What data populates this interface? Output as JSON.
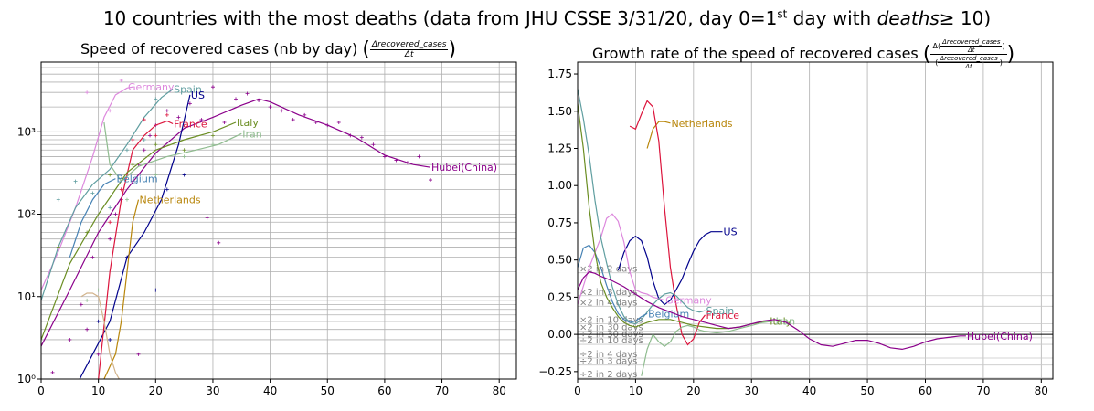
{
  "figure": {
    "title_prefix": "10 countries with the most deaths (data from JHU CSSE 3/31/20, day 0=1",
    "title_sup": "st",
    "title_mid": " day with ",
    "title_em": "deaths",
    "title_suffix": "≥ 10)"
  },
  "left_panel": {
    "title_text": "Speed of recovered cases (nb by day)",
    "frac_num": "Δrecovered_cases",
    "frac_den": "Δt"
  },
  "right_panel": {
    "title_text": "Growth rate of the speed of recovered cases",
    "outer_num_prefix": "Δ",
    "frac_num": "Δrecovered_cases",
    "frac_den": "Δt",
    "frac2_num": "Δrecovered_cases",
    "frac2_den": "Δt"
  },
  "chart_data": [
    {
      "type": "line",
      "scale": "log",
      "xlim": [
        0,
        83
      ],
      "ylim": [
        1,
        7000
      ],
      "xticks": [
        "0",
        "10",
        "20",
        "30",
        "40",
        "50",
        "60",
        "70",
        "80"
      ],
      "yticks": [
        "10⁰",
        "10¹",
        "10²",
        "10³"
      ],
      "grid": true,
      "series": [
        {
          "name": "Hubei(China)",
          "color": "#8b008b",
          "label_at": [
            68,
            370
          ],
          "x": [
            0,
            5,
            10,
            15,
            20,
            25,
            30,
            35,
            38,
            40,
            45,
            50,
            55,
            60,
            65,
            68
          ],
          "y": [
            2.5,
            12,
            60,
            200,
            550,
            1100,
            1500,
            2100,
            2500,
            2300,
            1600,
            1200,
            850,
            520,
            400,
            370
          ],
          "points": [
            [
              2,
              1.2
            ],
            [
              5,
              3
            ],
            [
              7,
              8
            ],
            [
              8,
              4
            ],
            [
              9,
              30
            ],
            [
              10,
              2
            ],
            [
              12,
              50
            ],
            [
              13,
              100
            ],
            [
              14,
              150
            ],
            [
              16,
              250
            ],
            [
              17,
              400
            ],
            [
              18,
              600
            ],
            [
              19,
              900
            ],
            [
              20,
              1200
            ],
            [
              22,
              1800
            ],
            [
              24,
              1500
            ],
            [
              26,
              2200
            ],
            [
              28,
              1400
            ],
            [
              30,
              3500
            ],
            [
              32,
              1300
            ],
            [
              34,
              2500
            ],
            [
              36,
              2900
            ],
            [
              38,
              2400
            ],
            [
              40,
              2000
            ],
            [
              42,
              1800
            ],
            [
              44,
              1400
            ],
            [
              46,
              1600
            ],
            [
              48,
              1300
            ],
            [
              50,
              1200
            ],
            [
              52,
              1300
            ],
            [
              54,
              900
            ],
            [
              56,
              850
            ],
            [
              58,
              700
            ],
            [
              60,
              500
            ],
            [
              62,
              450
            ],
            [
              64,
              420
            ],
            [
              66,
              500
            ],
            [
              68,
              260
            ],
            [
              17,
              2
            ],
            [
              29,
              90
            ],
            [
              31,
              45
            ]
          ]
        },
        {
          "name": "Germany",
          "color": "#dd88dd",
          "label_at": [
            15,
            3500
          ],
          "x": [
            0,
            3,
            6,
            9,
            11,
            13,
            15,
            16
          ],
          "y": [
            12,
            35,
            120,
            500,
            1500,
            2800,
            3400,
            3500
          ],
          "points": [
            [
              8,
              3000
            ],
            [
              12,
              1800
            ],
            [
              14,
              4200
            ]
          ]
        },
        {
          "name": "Spain",
          "color": "#5f9ea0",
          "label_at": [
            23,
            3300
          ],
          "x": [
            0,
            3,
            6,
            9,
            12,
            15,
            18,
            21,
            23
          ],
          "y": [
            9,
            40,
            120,
            230,
            350,
            700,
            1500,
            2600,
            3300
          ],
          "points": [
            [
              3,
              150
            ],
            [
              6,
              250
            ],
            [
              9,
              180
            ],
            [
              12,
              120
            ],
            [
              15,
              600
            ],
            [
              18,
              800
            ],
            [
              20,
              2500
            ]
          ]
        },
        {
          "name": "US",
          "color": "#00008b",
          "label_at": [
            26,
            2800
          ],
          "x": [
            6,
            9,
            12,
            15,
            18,
            21,
            24,
            26
          ],
          "y": [
            0.8,
            2,
            5,
            30,
            60,
            150,
            700,
            2800
          ],
          "points": [
            [
              10,
              5
            ],
            [
              12,
              3
            ],
            [
              15,
              30
            ],
            [
              20,
              12
            ],
            [
              22,
              200
            ],
            [
              25,
              300
            ]
          ]
        },
        {
          "name": "France",
          "color": "#dc143c",
          "label_at": [
            23,
            1250
          ],
          "x": [
            10,
            12,
            14,
            16,
            18,
            20,
            22,
            23
          ],
          "y": [
            1,
            20,
            150,
            600,
            900,
            1200,
            1350,
            1250
          ],
          "points": [
            [
              12,
              80
            ],
            [
              14,
              200
            ],
            [
              16,
              800
            ],
            [
              18,
              1400
            ],
            [
              20,
              900
            ],
            [
              22,
              1600
            ]
          ]
        },
        {
          "name": "Italy",
          "color": "#6b8e23",
          "label_at": [
            34,
            1300
          ],
          "x": [
            0,
            5,
            10,
            15,
            20,
            25,
            30,
            34
          ],
          "y": [
            3,
            25,
            100,
            320,
            600,
            800,
            1000,
            1300
          ],
          "points": [
            [
              3,
              40
            ],
            [
              8,
              60
            ],
            [
              12,
              300
            ],
            [
              16,
              400
            ],
            [
              20,
              700
            ],
            [
              25,
              600
            ],
            [
              30,
              900
            ]
          ]
        },
        {
          "name": "Iran",
          "color": "#8fbc8f",
          "label_at": [
            35,
            950
          ],
          "x": [
            11,
            12,
            14,
            17,
            22,
            27,
            31,
            35
          ],
          "y": [
            1300,
            400,
            250,
            380,
            500,
            600,
            700,
            950
          ],
          "points": [
            [
              8,
              9
            ],
            [
              10,
              12
            ],
            [
              15,
              150
            ],
            [
              20,
              300
            ],
            [
              25,
              500
            ],
            [
              30,
              700
            ]
          ]
        },
        {
          "name": "Belgium",
          "color": "#4682b4",
          "label_at": [
            13,
            270
          ],
          "x": [
            5,
            7,
            9,
            11,
            13
          ],
          "y": [
            30,
            80,
            150,
            230,
            270
          ],
          "points": []
        },
        {
          "name": "Netherlands",
          "color": "#b8860b",
          "label_at": [
            17,
            150
          ],
          "x": [
            11,
            13,
            14,
            15,
            16,
            17
          ],
          "y": [
            1,
            2,
            5,
            20,
            80,
            150
          ],
          "points": []
        },
        {
          "name": "",
          "color": "#d2b48c",
          "label_at": null,
          "x": [
            7,
            8,
            9,
            10,
            11,
            12,
            13,
            14,
            15
          ],
          "y": [
            10,
            11,
            11,
            10,
            5,
            2,
            1.2,
            0.9,
            0.9
          ],
          "points": []
        }
      ]
    },
    {
      "type": "line",
      "xlim": [
        0,
        82
      ],
      "ylim": [
        -0.3,
        1.83
      ],
      "xticks": [
        "0",
        "10",
        "20",
        "30",
        "40",
        "50",
        "60",
        "70",
        "80"
      ],
      "yticks": [
        "−0.25",
        "0.00",
        "0.25",
        "0.50",
        "0.75",
        "1.00",
        "1.25",
        "1.50",
        "1.75"
      ],
      "ytick_values": [
        -0.25,
        0,
        0.25,
        0.5,
        0.75,
        1.0,
        1.25,
        1.5,
        1.75
      ],
      "grid": true,
      "reference_lines": [
        {
          "label": "×2 in 2 days",
          "value": 0.414
        },
        {
          "label": "×2 in 3 days",
          "value": 0.26
        },
        {
          "label": "×2 in 4 days",
          "value": 0.189
        },
        {
          "label": "×2 in 10 days",
          "value": 0.072
        },
        {
          "label": "×2 in 30 days",
          "value": 0.023
        },
        {
          "label": "÷2 in 30 days",
          "value": -0.023
        },
        {
          "label": "÷2 in 10 days",
          "value": -0.067
        },
        {
          "label": "÷2 in 4 days",
          "value": -0.159
        },
        {
          "label": "÷2 in 3 days",
          "value": -0.206
        },
        {
          "label": "÷2 in 2 days",
          "value": -0.293
        }
      ],
      "series": [
        {
          "name": "Netherlands",
          "color": "#b8860b",
          "label_at": [
            16,
            1.42
          ],
          "x": [
            12,
            13,
            14,
            15,
            16
          ],
          "y": [
            1.25,
            1.38,
            1.43,
            1.43,
            1.42
          ]
        },
        {
          "name": "US",
          "color": "#00008b",
          "label_at": [
            25,
            0.69
          ],
          "x": [
            7,
            8,
            9,
            10,
            11,
            12,
            13,
            14,
            15,
            16,
            17,
            18,
            19,
            20,
            21,
            22,
            23,
            24,
            25
          ],
          "y": [
            0.43,
            0.55,
            0.63,
            0.66,
            0.63,
            0.52,
            0.36,
            0.24,
            0.2,
            0.23,
            0.3,
            0.37,
            0.47,
            0.56,
            0.63,
            0.67,
            0.69,
            0.69,
            0.69
          ]
        },
        {
          "name": "France",
          "color": "#dc143c",
          "label_at": [
            22,
            0.13
          ],
          "x": [
            9,
            10,
            11,
            12,
            13,
            14,
            15,
            16,
            17,
            18,
            19,
            20,
            21,
            22
          ],
          "y": [
            1.4,
            1.38,
            1.48,
            1.57,
            1.53,
            1.3,
            0.85,
            0.45,
            0.2,
            0.0,
            -0.07,
            -0.03,
            0.08,
            0.13
          ]
        },
        {
          "name": "Germany",
          "color": "#dd88dd",
          "label_at": [
            15,
            0.23
          ],
          "x": [
            0,
            2,
            4,
            5,
            6,
            7,
            8,
            9,
            10,
            11,
            12,
            13,
            14,
            15
          ],
          "y": [
            0.2,
            0.45,
            0.65,
            0.78,
            0.81,
            0.76,
            0.62,
            0.42,
            0.3,
            0.28,
            0.27,
            0.25,
            0.24,
            0.23
          ]
        },
        {
          "name": "Spain",
          "color": "#5f9ea0",
          "label_at": [
            22,
            0.16
          ],
          "x": [
            0,
            1,
            2,
            3,
            4,
            5,
            6,
            7,
            8,
            9,
            10,
            11,
            12,
            13,
            14,
            15,
            16,
            17,
            18,
            19,
            20,
            21,
            22
          ],
          "y": [
            1.65,
            1.45,
            1.2,
            0.9,
            0.65,
            0.48,
            0.32,
            0.2,
            0.12,
            0.08,
            0.07,
            0.1,
            0.15,
            0.2,
            0.24,
            0.27,
            0.28,
            0.26,
            0.22,
            0.18,
            0.16,
            0.15,
            0.16
          ]
        },
        {
          "name": "Belgium",
          "color": "#4682b4",
          "label_at": [
            12,
            0.14
          ],
          "x": [
            0,
            1,
            2,
            3,
            4,
            5,
            6,
            7,
            8,
            9,
            10,
            11,
            12
          ],
          "y": [
            0.45,
            0.58,
            0.6,
            0.55,
            0.45,
            0.33,
            0.22,
            0.14,
            0.1,
            0.08,
            0.09,
            0.12,
            0.14
          ]
        },
        {
          "name": "Italy",
          "color": "#6b8e23",
          "label_at": [
            33,
            0.09
          ],
          "x": [
            0,
            1,
            2,
            3,
            4,
            5,
            6,
            7,
            8,
            9,
            10,
            12,
            14,
            16,
            18,
            20,
            22,
            24,
            26,
            28,
            30,
            33
          ],
          "y": [
            1.55,
            1.25,
            0.85,
            0.55,
            0.35,
            0.25,
            0.18,
            0.12,
            0.08,
            0.06,
            0.05,
            0.08,
            0.1,
            0.1,
            0.08,
            0.06,
            0.05,
            0.04,
            0.04,
            0.05,
            0.07,
            0.09
          ]
        },
        {
          "name": "Iran",
          "color": "#8fbc8f",
          "label_at": [
            34,
            0.09
          ],
          "x": [
            11,
            12,
            13,
            14,
            15,
            16,
            17,
            18,
            19,
            20,
            21,
            22,
            24,
            26,
            28,
            30,
            32,
            34
          ],
          "y": [
            -0.28,
            -0.1,
            0.0,
            -0.05,
            -0.08,
            -0.05,
            0.02,
            0.05,
            0.06,
            0.05,
            0.03,
            0.02,
            0.01,
            0.02,
            0.04,
            0.06,
            0.08,
            0.09
          ]
        },
        {
          "name": "Hubei(China)",
          "color": "#8b008b",
          "label_at": [
            67,
            -0.01
          ],
          "x": [
            0,
            1,
            2,
            3,
            4,
            6,
            8,
            10,
            12,
            14,
            16,
            18,
            20,
            22,
            24,
            26,
            28,
            30,
            32,
            34,
            36,
            38,
            40,
            42,
            44,
            46,
            48,
            50,
            52,
            54,
            56,
            58,
            60,
            62,
            64,
            66,
            67
          ],
          "y": [
            0.3,
            0.38,
            0.42,
            0.41,
            0.39,
            0.36,
            0.32,
            0.27,
            0.22,
            0.18,
            0.15,
            0.12,
            0.1,
            0.08,
            0.06,
            0.04,
            0.05,
            0.07,
            0.09,
            0.1,
            0.08,
            0.03,
            -0.03,
            -0.07,
            -0.08,
            -0.06,
            -0.04,
            -0.04,
            -0.06,
            -0.09,
            -0.1,
            -0.08,
            -0.05,
            -0.03,
            -0.02,
            -0.01,
            -0.01
          ]
        }
      ]
    }
  ]
}
